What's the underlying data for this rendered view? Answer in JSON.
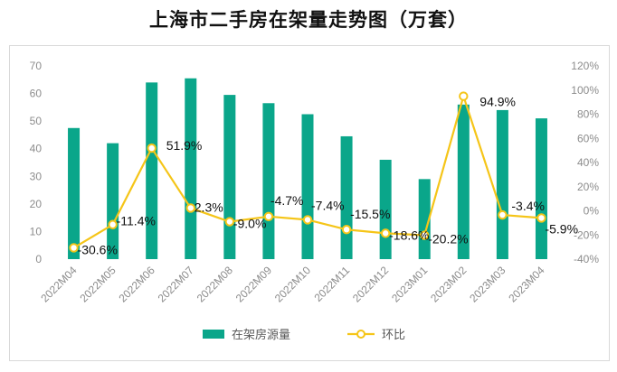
{
  "title": "上海市二手房在架量走势图（万套）",
  "chart_data": {
    "type": "bar+line",
    "title": "上海市二手房在架量走势图（万套）",
    "categories": [
      "2022M04",
      "2022M05",
      "2022M06",
      "2022M07",
      "2022M08",
      "2022M09",
      "2022M10",
      "2022M11",
      "2022M12",
      "2023M01",
      "2023M02",
      "2023M03",
      "2023M04"
    ],
    "series": [
      {
        "name": "在架房源量",
        "type": "bar",
        "axis": "left",
        "color": "#0aa68a",
        "values": [
          47.5,
          42,
          64,
          65.5,
          59.5,
          56.5,
          52.5,
          44.5,
          36,
          29,
          56,
          54,
          51
        ]
      },
      {
        "name": "环比",
        "type": "line",
        "axis": "right",
        "color": "#f5c518",
        "values": [
          -30.6,
          -11.4,
          51.9,
          2.3,
          -9.0,
          -4.7,
          -7.4,
          -15.5,
          -18.6,
          -20.2,
          94.9,
          -3.4,
          -5.9
        ],
        "labels": [
          "-30.6%",
          "-11.4%",
          "51.9%",
          "2.3%",
          "-9.0%",
          "-4.7%",
          "-7.4%",
          "-15.5%",
          "-18.6%",
          "-20.2%",
          "94.9%",
          "-3.4%",
          "-5.9%"
        ]
      }
    ],
    "left_axis": {
      "min": 0,
      "max": 70,
      "ticks": [
        "0",
        "10",
        "20",
        "30",
        "40",
        "50",
        "60",
        "70"
      ]
    },
    "right_axis": {
      "min": -40,
      "max": 120,
      "ticks": [
        "-40%",
        "-20%",
        "0%",
        "20%",
        "40%",
        "60%",
        "80%",
        "100%",
        "120%"
      ]
    },
    "legend": {
      "position": "bottom",
      "items": [
        "在架房源量",
        "环比"
      ]
    },
    "grid": false
  }
}
